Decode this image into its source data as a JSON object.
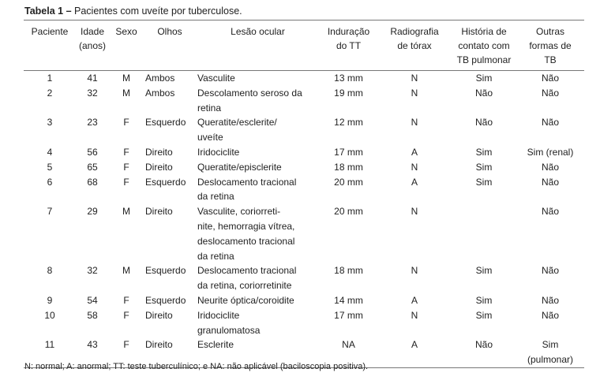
{
  "title": {
    "label": "Tabela 1 –",
    "text": "Pacientes com uveíte por tuberculose."
  },
  "columns": [
    "Paciente",
    "Idade\n(anos)",
    "Sexo",
    "Olhos",
    "Lesão ocular",
    "Induração\ndo TT",
    "Radiografia\nde tórax",
    "História de\ncontato com\nTB pulmonar",
    "Outras\nformas de\nTB"
  ],
  "rows": [
    [
      "1",
      "41",
      "M",
      "Ambos",
      "Vasculite",
      "13 mm",
      "N",
      "Sim",
      "Não"
    ],
    [
      "2",
      "32",
      "M",
      "Ambos",
      "Descolamento seroso da\nretina",
      "19 mm",
      "N",
      "Não",
      "Não"
    ],
    [
      "3",
      "23",
      "F",
      "Esquerdo",
      "Queratite/esclerite/\nuveíte",
      "12 mm",
      "N",
      "Não",
      "Não"
    ],
    [
      "4",
      "56",
      "F",
      "Direito",
      "Iridociclite",
      "17 mm",
      "A",
      "Sim",
      "Sim (renal)"
    ],
    [
      "5",
      "65",
      "F",
      "Direito",
      "Queratite/episclerite",
      "18 mm",
      "N",
      "Sim",
      "Não"
    ],
    [
      "6",
      "68",
      "F",
      "Esquerdo",
      "Deslocamento tracional\nda retina",
      "20 mm",
      "A",
      "Sim",
      "Não"
    ],
    [
      "7",
      "29",
      "M",
      "Direito",
      "Vasculite, coriorreti-\nnite, hemorragia vítrea,\ndeslocamento tracional\nda retina",
      "20 mm",
      "N",
      "",
      "Não"
    ],
    [
      "8",
      "32",
      "M",
      "Esquerdo",
      "Deslocamento tracional\nda retina, coriorretinite",
      "18 mm",
      "N",
      "Sim",
      "Não"
    ],
    [
      "9",
      "54",
      "F",
      "Esquerdo",
      "Neurite óptica/coroidite",
      "14 mm",
      "A",
      "Sim",
      "Não"
    ],
    [
      "10",
      "58",
      "F",
      "Direito",
      "Iridociclite\ngranulomatosa",
      "17 mm",
      "N",
      "Sim",
      "Não"
    ],
    [
      "11",
      "43",
      "F",
      "Direito",
      "Esclerite",
      "NA",
      "A",
      "Não",
      "Sim\n(pulmonar)"
    ]
  ],
  "footnote": "N: normal; A: anormal; TT: teste tuberculínico; e NA: não aplicável (baciloscopia positiva)."
}
